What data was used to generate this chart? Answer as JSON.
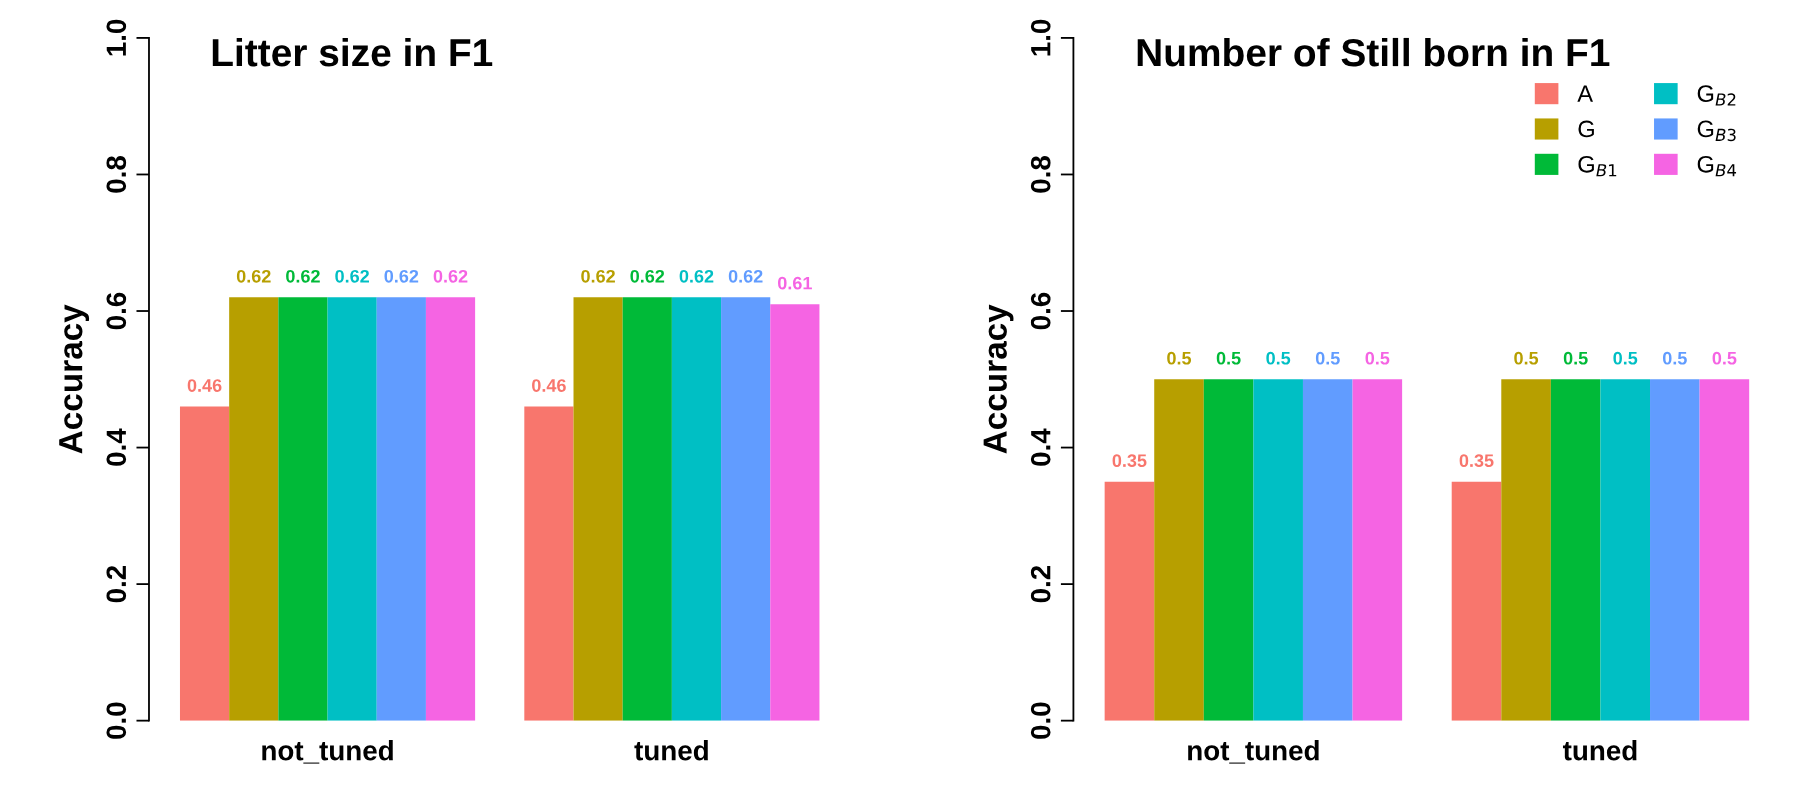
{
  "chart_data": [
    {
      "type": "bar",
      "title": "Litter size in F1",
      "ylabel": "Accuracy",
      "categories": [
        "not_tuned",
        "tuned"
      ],
      "series": [
        {
          "color": "#f8766d",
          "values": [
            0.46,
            0.46
          ]
        },
        {
          "color": "#b79f00",
          "values": [
            0.62,
            0.62
          ]
        },
        {
          "color": "#00ba38",
          "values": [
            0.62,
            0.62
          ]
        },
        {
          "color": "#00bfc4",
          "values": [
            0.62,
            0.62
          ]
        },
        {
          "color": "#619cff",
          "values": [
            0.62,
            0.62
          ]
        },
        {
          "color": "#f564e3",
          "values": [
            0.62,
            0.61
          ]
        }
      ],
      "ylim": [
        0,
        1
      ],
      "yticks": [
        {
          "value": 0,
          "label": "0.0"
        },
        {
          "value": 0.2,
          "label": "0.2"
        },
        {
          "value": 0.4,
          "label": "0.4"
        },
        {
          "value": 0.6,
          "label": "0.6"
        },
        {
          "value": 0.8,
          "label": "0.8"
        },
        {
          "value": 1,
          "label": "1.0"
        }
      ],
      "data_labels": true,
      "grid": false,
      "legend": false
    },
    {
      "type": "bar",
      "title": "Number of Still born in F1",
      "ylabel": "Accuracy",
      "categories": [
        "not_tuned",
        "tuned"
      ],
      "series": [
        {
          "name": "A",
          "color": "#f8766d",
          "values": [
            0.35,
            0.35
          ]
        },
        {
          "name": "G",
          "color": "#b79f00",
          "values": [
            0.5,
            0.5
          ]
        },
        {
          "name": "G$_{B1}$",
          "color": "#00ba38",
          "values": [
            0.5,
            0.5
          ]
        },
        {
          "name": "G$_{B2}$",
          "color": "#00bfc4",
          "values": [
            0.5,
            0.5
          ]
        },
        {
          "name": "G$_{B3}$",
          "color": "#619cff",
          "values": [
            0.5,
            0.5
          ]
        },
        {
          "name": "G$_{B4}$",
          "color": "#f564e3",
          "values": [
            0.5,
            0.5
          ]
        }
      ],
      "ylim": [
        0,
        1
      ],
      "yticks": [
        {
          "value": 0,
          "label": "0.0"
        },
        {
          "value": 0.2,
          "label": "0.2"
        },
        {
          "value": 0.4,
          "label": "0.4"
        },
        {
          "value": 0.6,
          "label": "0.6"
        },
        {
          "value": 0.8,
          "label": "0.8"
        },
        {
          "value": 1,
          "label": "1.0"
        }
      ],
      "data_labels": true,
      "grid": false,
      "legend": "top right"
    }
  ]
}
